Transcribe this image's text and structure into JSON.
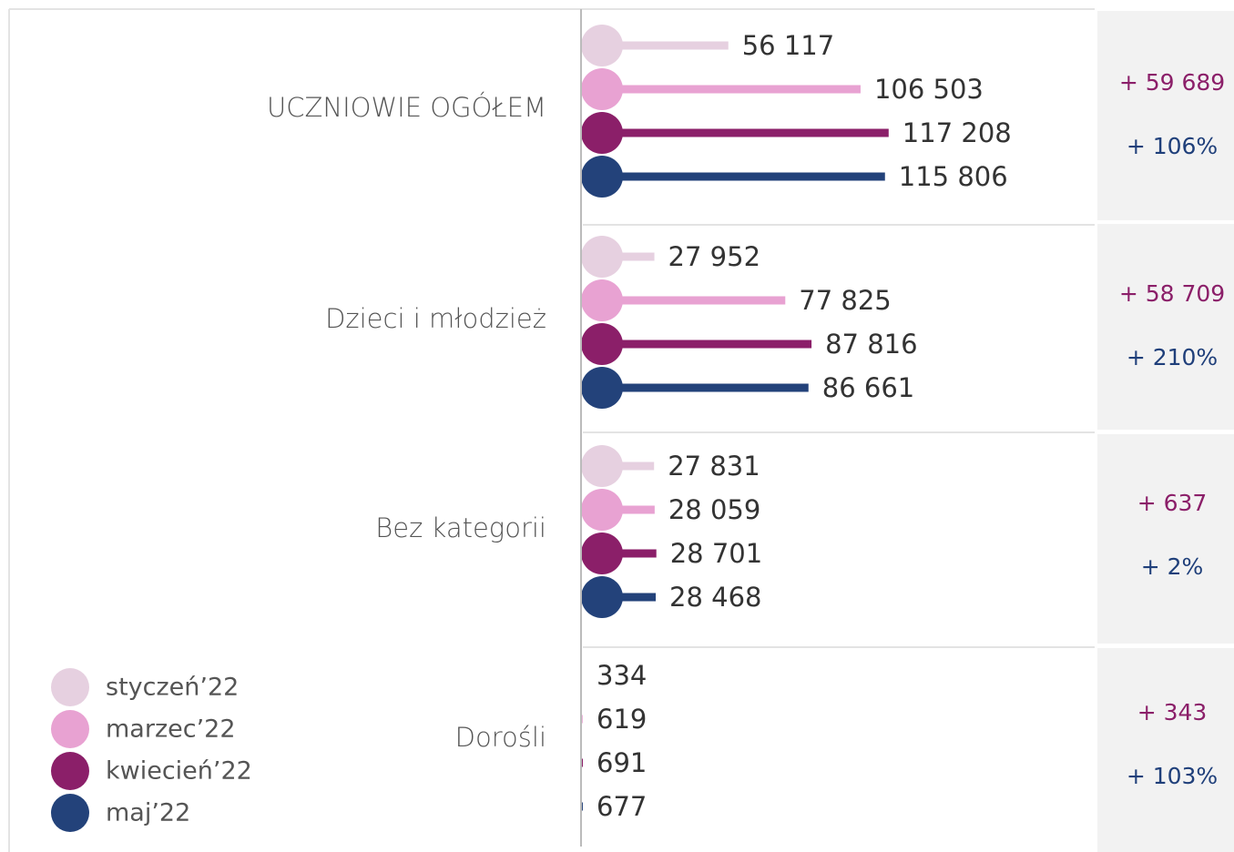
{
  "chart_data": {
    "type": "lollipop",
    "categories": [
      "UCZNIOWIE OGÓŁEM",
      "Dzieci i młodzież",
      "Bez kategorii",
      "Dorośli"
    ],
    "xlim": [
      0,
      195000
    ],
    "series": [
      {
        "name": "styczeń’22",
        "color": "#e6d0e0",
        "values": [
          56117,
          27952,
          27831,
          334
        ],
        "value_labels": [
          "56 117",
          "27 952",
          "27 831",
          "334"
        ]
      },
      {
        "name": "marzec’22",
        "color": "#e8a2d2",
        "values": [
          106503,
          77825,
          28059,
          619
        ],
        "value_labels": [
          "106 503",
          "77 825",
          "28 059",
          "619"
        ]
      },
      {
        "name": "kwiecień’22",
        "color": "#8b1f69",
        "values": [
          117208,
          87816,
          28701,
          691
        ],
        "value_labels": [
          "117 208",
          "87 816",
          "28 701",
          "691"
        ]
      },
      {
        "name": "maj’22",
        "color": "#23427a",
        "values": [
          115806,
          86661,
          28468,
          677
        ],
        "value_labels": [
          "115 806",
          "86 661",
          "28 468",
          "677"
        ]
      }
    ],
    "changes": [
      {
        "absolute": "+ 59 689",
        "percent": "+ 106%"
      },
      {
        "absolute": "+ 58 709",
        "percent": "+ 210%"
      },
      {
        "absolute": "+ 637",
        "percent": "+ 2%"
      },
      {
        "absolute": "+ 343",
        "percent": "+ 103%"
      }
    ]
  }
}
